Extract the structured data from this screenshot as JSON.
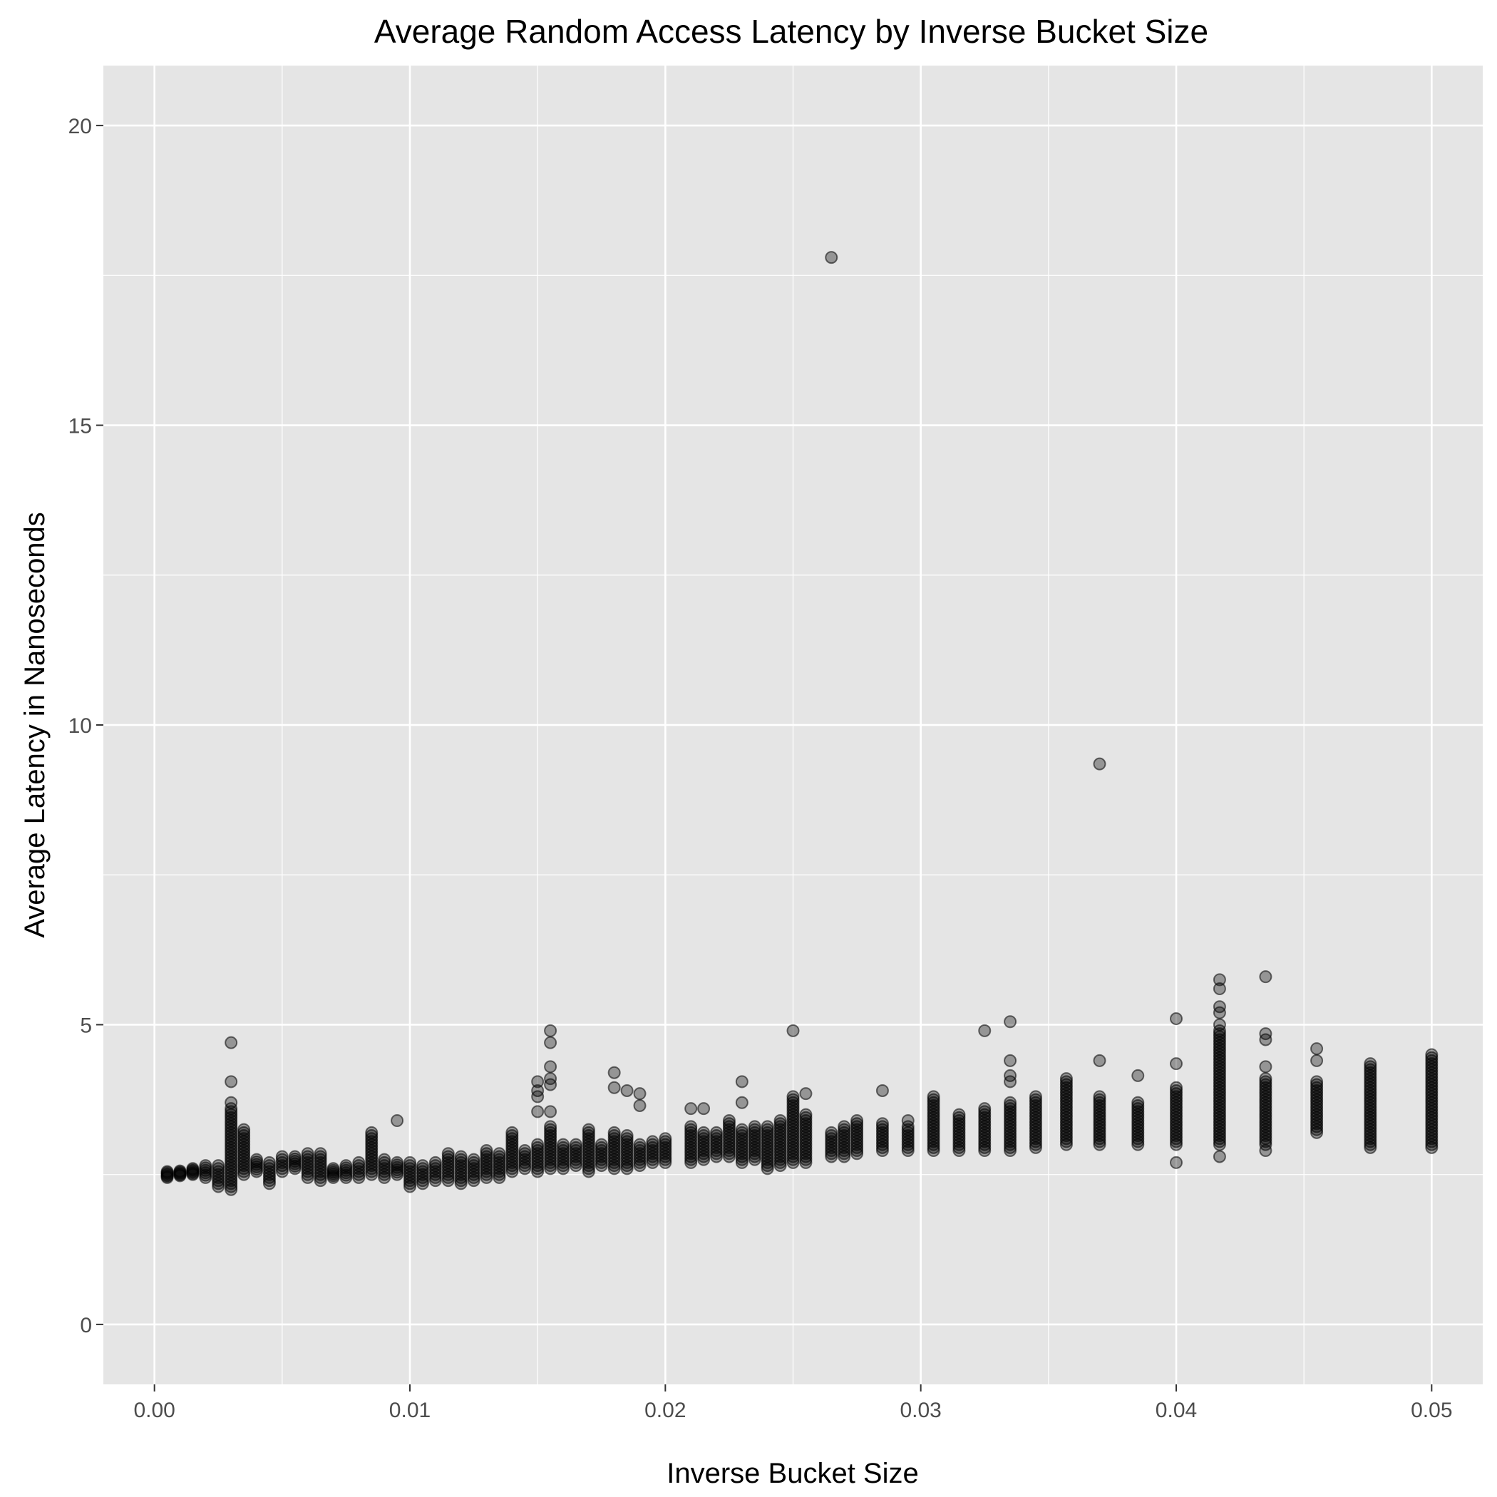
{
  "chart_data": {
    "type": "scatter",
    "title": "Average Random Access Latency by Inverse Bucket Size",
    "xlabel": "Inverse Bucket Size",
    "ylabel": "Average Latency in Nanoseconds",
    "xlim": [
      -0.002,
      0.052
    ],
    "ylim": [
      -1,
      21
    ],
    "x_ticks": [
      0.0,
      0.01,
      0.02,
      0.03,
      0.04,
      0.05
    ],
    "x_tick_labels": [
      "0.00",
      "0.01",
      "0.02",
      "0.03",
      "0.04",
      "0.05"
    ],
    "y_ticks": [
      0,
      5,
      10,
      15,
      20
    ],
    "y_tick_labels": [
      "0",
      "5",
      "10",
      "15",
      "20"
    ],
    "grid": true,
    "legend": "none",
    "colors": {
      "panel": "#e5e5e5",
      "grid": "#ffffff",
      "point": "#000000"
    },
    "point_alpha": 0.35,
    "columns": [
      {
        "x": 0.0005,
        "min": 2.45,
        "max": 2.55
      },
      {
        "x": 0.001,
        "min": 2.48,
        "max": 2.56
      },
      {
        "x": 0.0015,
        "min": 2.5,
        "max": 2.6
      },
      {
        "x": 0.002,
        "min": 2.45,
        "max": 2.65
      },
      {
        "x": 0.0025,
        "min": 2.3,
        "max": 2.65
      },
      {
        "x": 0.003,
        "min": 2.25,
        "max": 3.6,
        "outliers": [
          4.7,
          4.05,
          3.7
        ]
      },
      {
        "x": 0.0035,
        "min": 2.5,
        "max": 3.25
      },
      {
        "x": 0.004,
        "min": 2.55,
        "max": 2.75
      },
      {
        "x": 0.0045,
        "min": 2.35,
        "max": 2.7
      },
      {
        "x": 0.005,
        "min": 2.55,
        "max": 2.8
      },
      {
        "x": 0.0055,
        "min": 2.6,
        "max": 2.8
      },
      {
        "x": 0.006,
        "min": 2.45,
        "max": 2.85
      },
      {
        "x": 0.0065,
        "min": 2.4,
        "max": 2.85
      },
      {
        "x": 0.007,
        "min": 2.45,
        "max": 2.6
      },
      {
        "x": 0.0075,
        "min": 2.45,
        "max": 2.65
      },
      {
        "x": 0.008,
        "min": 2.45,
        "max": 2.7
      },
      {
        "x": 0.0085,
        "min": 2.5,
        "max": 3.2
      },
      {
        "x": 0.009,
        "min": 2.45,
        "max": 2.75
      },
      {
        "x": 0.0095,
        "min": 2.5,
        "max": 2.7,
        "outliers": [
          3.4
        ]
      },
      {
        "x": 0.01,
        "min": 2.3,
        "max": 2.7
      },
      {
        "x": 0.0105,
        "min": 2.35,
        "max": 2.65
      },
      {
        "x": 0.011,
        "min": 2.4,
        "max": 2.7
      },
      {
        "x": 0.0115,
        "min": 2.4,
        "max": 2.85
      },
      {
        "x": 0.012,
        "min": 2.35,
        "max": 2.8
      },
      {
        "x": 0.0125,
        "min": 2.4,
        "max": 2.75
      },
      {
        "x": 0.013,
        "min": 2.45,
        "max": 2.9
      },
      {
        "x": 0.0135,
        "min": 2.45,
        "max": 2.85
      },
      {
        "x": 0.014,
        "min": 2.55,
        "max": 3.2
      },
      {
        "x": 0.0145,
        "min": 2.6,
        "max": 2.9
      },
      {
        "x": 0.015,
        "min": 2.55,
        "max": 3.0,
        "outliers": [
          4.05,
          3.9,
          3.8,
          3.55
        ]
      },
      {
        "x": 0.0155,
        "min": 2.6,
        "max": 3.3,
        "outliers": [
          4.9,
          4.7,
          4.3,
          4.1,
          4.0,
          3.55
        ]
      },
      {
        "x": 0.016,
        "min": 2.6,
        "max": 3.0
      },
      {
        "x": 0.0165,
        "min": 2.65,
        "max": 3.0
      },
      {
        "x": 0.017,
        "min": 2.55,
        "max": 3.25
      },
      {
        "x": 0.0175,
        "min": 2.65,
        "max": 3.0
      },
      {
        "x": 0.018,
        "min": 2.6,
        "max": 3.2,
        "outliers": [
          4.2,
          3.95
        ]
      },
      {
        "x": 0.0185,
        "min": 2.6,
        "max": 3.15,
        "outliers": [
          3.9
        ]
      },
      {
        "x": 0.019,
        "min": 2.65,
        "max": 3.0,
        "outliers": [
          3.85,
          3.65
        ]
      },
      {
        "x": 0.0195,
        "min": 2.7,
        "max": 3.05
      },
      {
        "x": 0.02,
        "min": 2.7,
        "max": 3.1
      },
      {
        "x": 0.021,
        "min": 2.7,
        "max": 3.3,
        "outliers": [
          3.6
        ]
      },
      {
        "x": 0.0215,
        "min": 2.75,
        "max": 3.2,
        "outliers": [
          3.6
        ]
      },
      {
        "x": 0.022,
        "min": 2.8,
        "max": 3.2
      },
      {
        "x": 0.0225,
        "min": 2.8,
        "max": 3.4
      },
      {
        "x": 0.023,
        "min": 2.7,
        "max": 3.25,
        "outliers": [
          4.05,
          3.7
        ]
      },
      {
        "x": 0.0235,
        "min": 2.75,
        "max": 3.3
      },
      {
        "x": 0.024,
        "min": 2.6,
        "max": 3.3
      },
      {
        "x": 0.0245,
        "min": 2.65,
        "max": 3.4
      },
      {
        "x": 0.025,
        "min": 2.7,
        "max": 3.8,
        "outliers": [
          4.9
        ]
      },
      {
        "x": 0.0255,
        "min": 2.7,
        "max": 3.5,
        "outliers": [
          3.85
        ]
      },
      {
        "x": 0.0265,
        "min": 2.8,
        "max": 3.2,
        "outliers": [
          17.8
        ]
      },
      {
        "x": 0.027,
        "min": 2.8,
        "max": 3.3
      },
      {
        "x": 0.0275,
        "min": 2.85,
        "max": 3.4
      },
      {
        "x": 0.0285,
        "min": 2.9,
        "max": 3.35,
        "outliers": [
          3.9
        ]
      },
      {
        "x": 0.0295,
        "min": 2.9,
        "max": 3.3,
        "outliers": [
          3.4
        ]
      },
      {
        "x": 0.0305,
        "min": 2.9,
        "max": 3.8
      },
      {
        "x": 0.0315,
        "min": 2.9,
        "max": 3.5
      },
      {
        "x": 0.0325,
        "min": 2.9,
        "max": 3.6,
        "outliers": [
          4.9
        ]
      },
      {
        "x": 0.0335,
        "min": 2.9,
        "max": 3.7,
        "outliers": [
          5.05,
          4.4,
          4.15,
          4.05
        ]
      },
      {
        "x": 0.0345,
        "min": 2.95,
        "max": 3.8
      },
      {
        "x": 0.0357,
        "min": 3.0,
        "max": 4.1
      },
      {
        "x": 0.037,
        "min": 3.0,
        "max": 3.8,
        "outliers": [
          9.35,
          4.4
        ]
      },
      {
        "x": 0.0385,
        "min": 3.0,
        "max": 3.7,
        "outliers": [
          4.15
        ]
      },
      {
        "x": 0.04,
        "min": 3.0,
        "max": 3.95,
        "outliers": [
          5.1,
          4.35,
          2.7
        ]
      },
      {
        "x": 0.0417,
        "min": 3.0,
        "max": 4.9,
        "outliers": [
          5.75,
          5.6,
          5.3,
          5.2,
          5.0,
          2.8
        ]
      },
      {
        "x": 0.0435,
        "min": 3.0,
        "max": 4.1,
        "outliers": [
          5.8,
          4.85,
          4.75,
          4.3,
          2.9
        ]
      },
      {
        "x": 0.0455,
        "min": 3.2,
        "max": 4.05,
        "outliers": [
          4.6,
          4.4
        ]
      },
      {
        "x": 0.0476,
        "min": 2.95,
        "max": 4.35
      },
      {
        "x": 0.05,
        "min": 2.95,
        "max": 4.5
      }
    ]
  }
}
